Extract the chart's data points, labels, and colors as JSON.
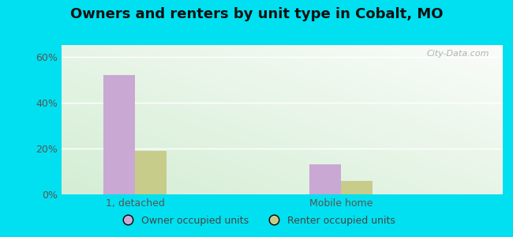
{
  "title": "Owners and renters by unit type in Cobalt, MO",
  "categories": [
    "1, detached",
    "Mobile home"
  ],
  "owner_values": [
    52,
    13
  ],
  "renter_values": [
    19,
    6
  ],
  "owner_color": "#c9a8d4",
  "renter_color": "#c8cc8a",
  "yticks": [
    0,
    20,
    40,
    60
  ],
  "ytick_labels": [
    "0%",
    "20%",
    "40%",
    "60%"
  ],
  "ylim": [
    0,
    65
  ],
  "background_outer": "#00e0f0",
  "watermark": "City-Data.com",
  "legend_owner": "Owner occupied units",
  "legend_renter": "Renter occupied units",
  "bar_width": 0.32,
  "title_fontsize": 13
}
